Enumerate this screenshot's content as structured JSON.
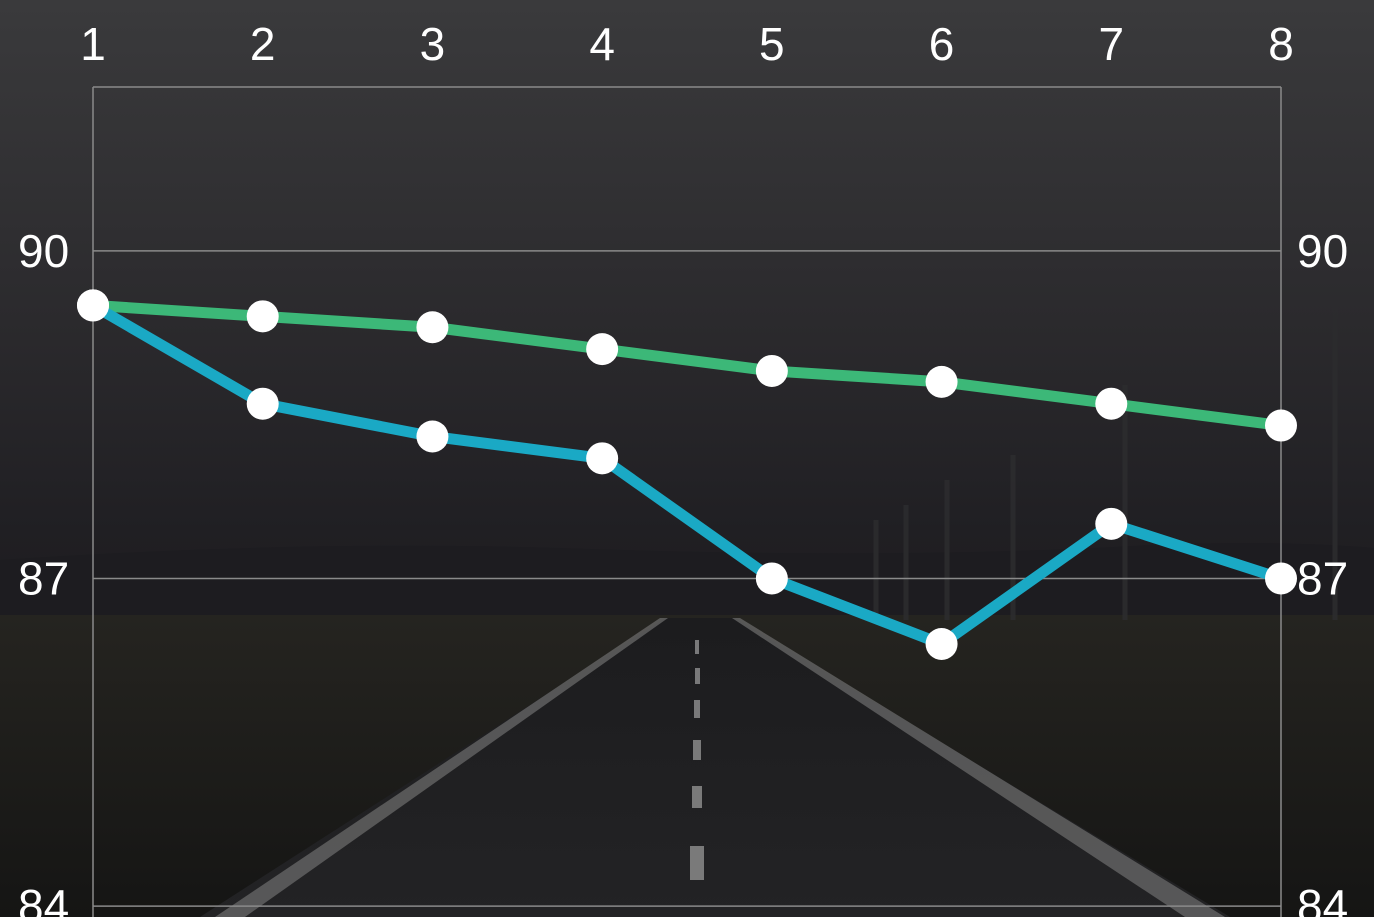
{
  "chart_data": {
    "type": "line",
    "title": "",
    "xlabel": "",
    "ylabel": "",
    "categories": [
      "1",
      "2",
      "3",
      "4",
      "5",
      "6",
      "7",
      "8"
    ],
    "x_axis_position": "top",
    "y_axis_position": "both",
    "ylim": [
      83.9,
      91.5
    ],
    "y_ticks": [
      84,
      87,
      90
    ],
    "grid": true,
    "legend": "none",
    "series": [
      {
        "color": "#3cb878",
        "values": [
          89.5,
          89.4,
          89.3,
          89.1,
          88.9,
          88.8,
          88.6,
          88.4
        ]
      },
      {
        "color": "#1aa9c5",
        "values": [
          89.5,
          88.6,
          88.3,
          88.1,
          87.0,
          86.4,
          87.5,
          87.0
        ]
      }
    ],
    "marker_color": "#ffffff",
    "gridline_color": "#8a8a8a",
    "background": "dark night road photograph"
  }
}
